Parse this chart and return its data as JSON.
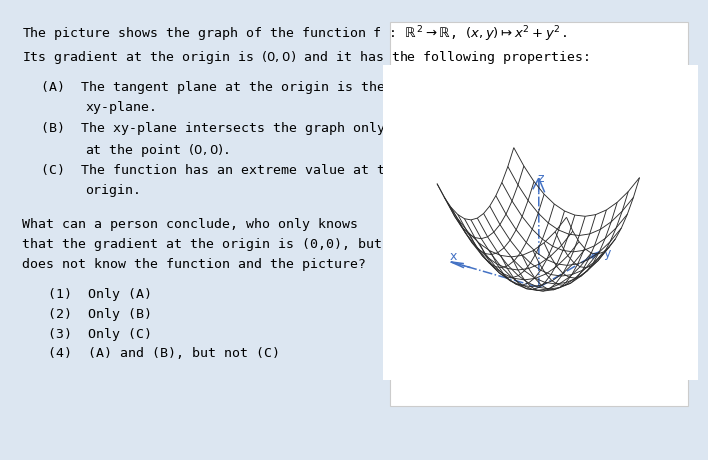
{
  "background_color": "#dce6f1",
  "text_color": "#000000",
  "surface_color": "#2c2c2c",
  "axis_color": "#4472c4",
  "white_box_color": "#ffffff",
  "font_size": 9.5,
  "font_family": "monospace",
  "line1": "The picture shows the graph of the function f : $\\mathbb{R}^2 \\to \\mathbb{R}$, $(x, y) \\mapsto x^2 + y^2$.",
  "line2": "Its gradient at the origin is $(0, 0)$ and it has the following properties:",
  "itemA1": "(A)  The tangent plane at the origin is the",
  "itemA2": "       xy-plane.",
  "itemB1": "(B)  The xy-plane intersects the graph only",
  "itemB2": "       at the point $(0, 0)$.",
  "itemC1": "(C)  The function has an extreme value at the",
  "itemC2": "       origin.",
  "q1": "What can a person conclude, who only knows",
  "q2": "that the gradient at the origin is (0,0), but who",
  "q3": "does not know the function and the picture?",
  "ans1": "(1)  Only (A)",
  "ans2": "(2)  Only (B)",
  "ans3": "(3)  Only (C)",
  "ans4": "(4)  (A) and (B), but not (C)",
  "xlabel": "x",
  "ylabel": "y",
  "zlabel": "z",
  "elev": 22,
  "azim": -55
}
